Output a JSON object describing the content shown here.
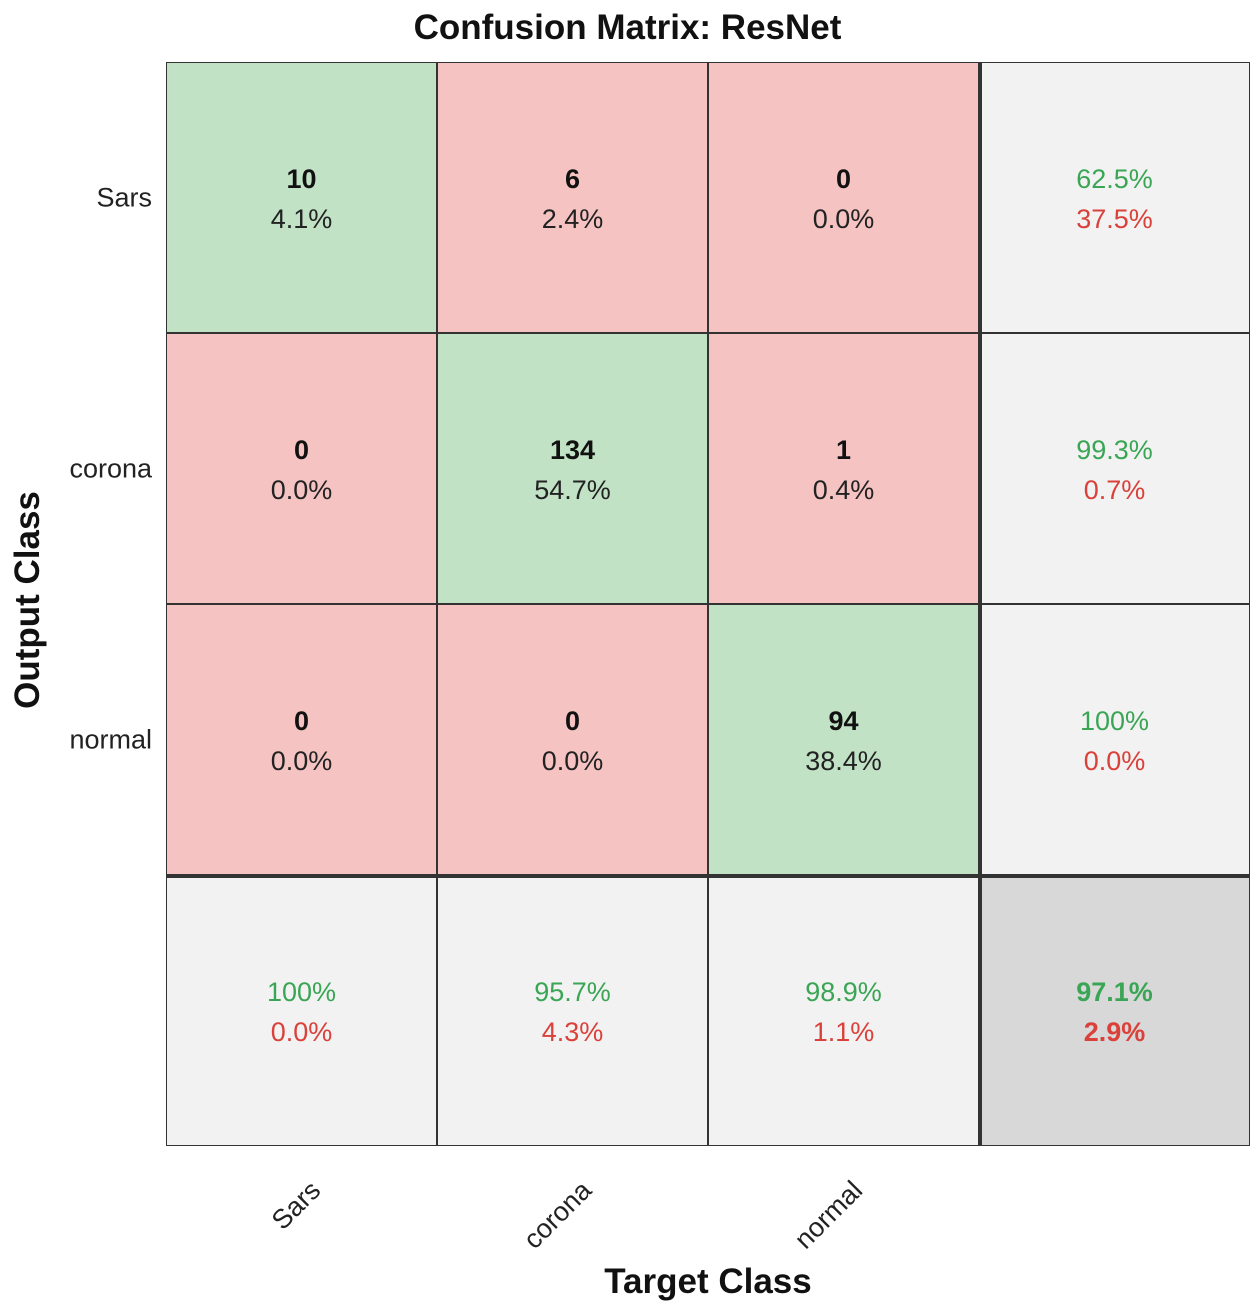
{
  "chart_data": {
    "type": "heatmap",
    "title": "Confusion Matrix: ResNet",
    "xlabel": "Target Class",
    "ylabel": "Output Class",
    "classes": [
      "Sars",
      "corona",
      "normal"
    ],
    "matrix": [
      [
        {
          "count": "10",
          "pct": "4.1%"
        },
        {
          "count": "6",
          "pct": "2.4%"
        },
        {
          "count": "0",
          "pct": "0.0%"
        }
      ],
      [
        {
          "count": "0",
          "pct": "0.0%"
        },
        {
          "count": "134",
          "pct": "54.7%"
        },
        {
          "count": "1",
          "pct": "0.4%"
        }
      ],
      [
        {
          "count": "0",
          "pct": "0.0%"
        },
        {
          "count": "0",
          "pct": "0.0%"
        },
        {
          "count": "94",
          "pct": "38.4%"
        }
      ]
    ],
    "row_summary": [
      {
        "correct": "62.5%",
        "error": "37.5%"
      },
      {
        "correct": "99.3%",
        "error": "0.7%"
      },
      {
        "correct": "100%",
        "error": "0.0%"
      }
    ],
    "col_summary": [
      {
        "correct": "100%",
        "error": "0.0%"
      },
      {
        "correct": "95.7%",
        "error": "4.3%"
      },
      {
        "correct": "98.9%",
        "error": "1.1%"
      }
    ],
    "overall": {
      "correct": "97.1%",
      "error": "2.9%"
    },
    "colors": {
      "correct_cell": "#c2e2c6",
      "error_cell": "#f6c3c3",
      "summary_cell": "#f2f2f2",
      "overall_cell": "#d8d8d8",
      "good_text": "#3aa655",
      "bad_text": "#d9413a"
    }
  }
}
